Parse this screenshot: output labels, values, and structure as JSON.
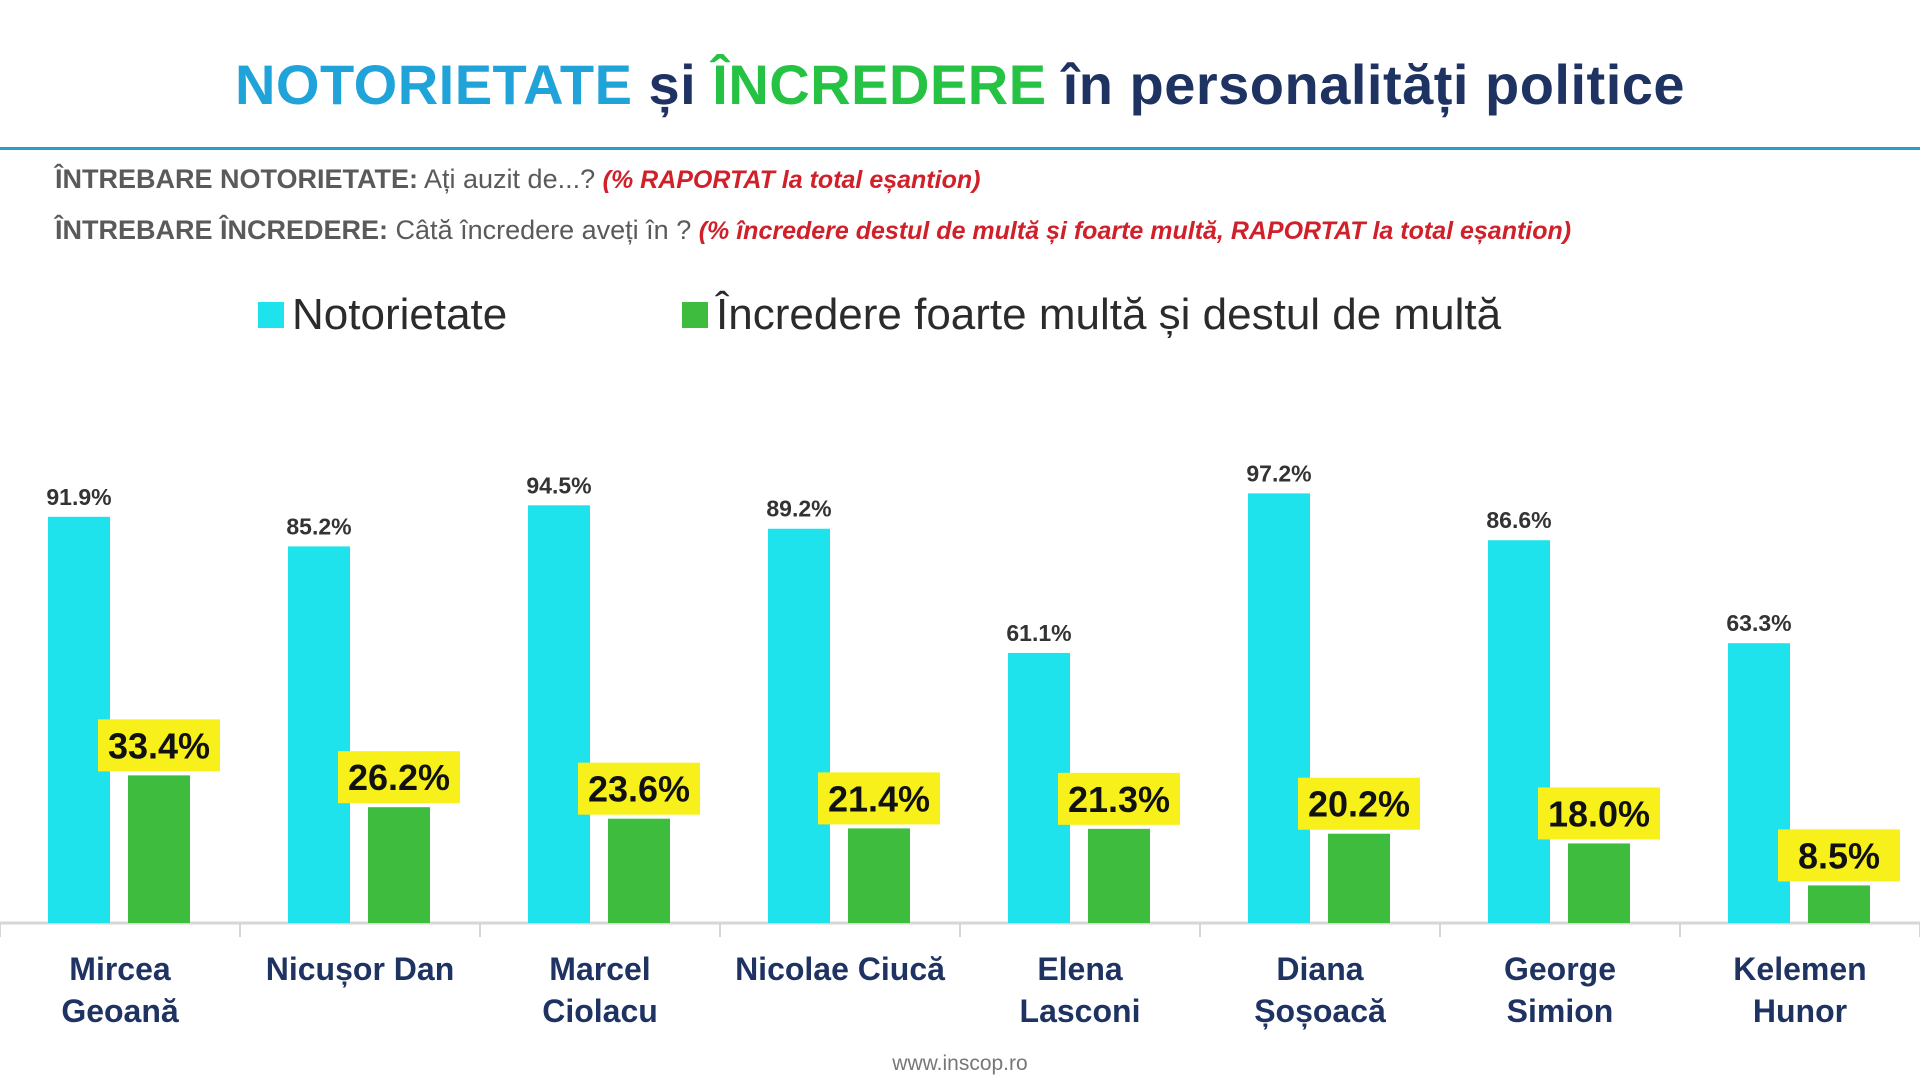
{
  "title": {
    "part1": "NOTORIETATE",
    "part2": "și",
    "part3": "ÎNCREDERE",
    "part4": "în personalități politice"
  },
  "questions": {
    "q1_lead": "ÎNTREBARE NOTORIETATE:",
    "q1_text": "Ați auzit de...?",
    "q1_note": "(% RAPORTAT la total eșantion)",
    "q2_lead": "ÎNTREBARE ÎNCREDERE:",
    "q2_text": "Câtă încredere aveți în ?",
    "q2_note": "(% încredere destul de multă și foarte multă, RAPORTAT la total eșantion)"
  },
  "footer": "www.inscop.ro",
  "colors": {
    "notorietate": "#1fe3ec",
    "incredere": "#3dbc3d",
    "label_highlight": "#f7f01a"
  },
  "chart_data": {
    "type": "bar",
    "categories": [
      [
        "Mircea",
        "Geoană"
      ],
      [
        "Nicușor Dan"
      ],
      [
        "Marcel",
        "Ciolacu"
      ],
      [
        "Nicolae Ciucă"
      ],
      [
        "Elena",
        "Lasconi"
      ],
      [
        "Diana",
        "Șoșoacă"
      ],
      [
        "George",
        "Simion"
      ],
      [
        "Kelemen",
        "Hunor"
      ]
    ],
    "series": [
      {
        "name": "Notorietate",
        "values": [
          91.9,
          85.2,
          94.5,
          89.2,
          61.1,
          97.2,
          86.6,
          63.3
        ],
        "labels": [
          "91.9%",
          "85.2%",
          "94.5%",
          "89.2%",
          "61.1%",
          "97.2%",
          "86.6%",
          "63.3%"
        ]
      },
      {
        "name": "Încredere foarte multă și destul de multă",
        "values": [
          33.4,
          26.2,
          23.6,
          21.4,
          21.3,
          20.2,
          18.0,
          8.5
        ],
        "labels": [
          "33.4%",
          "26.2%",
          "23.6%",
          "21.4%",
          "21.3%",
          "20.2%",
          "18.0%",
          "8.5%"
        ]
      }
    ],
    "ylim": [
      0,
      100
    ],
    "grid": false,
    "legend": "top"
  }
}
